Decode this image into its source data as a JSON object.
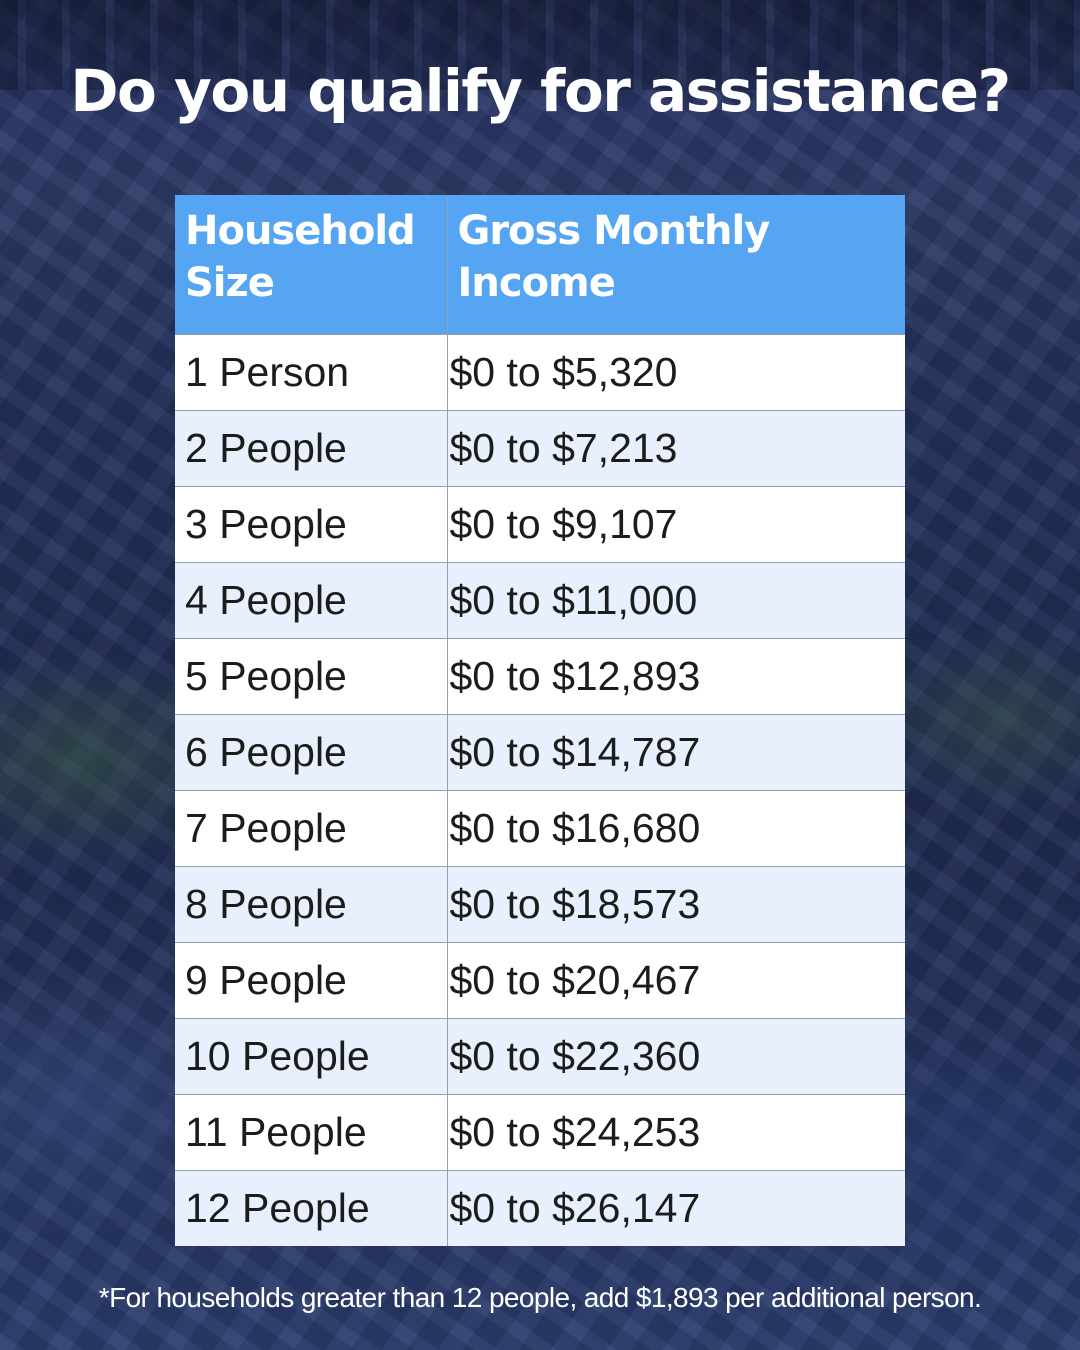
{
  "title": "Do you qualify for assistance?",
  "table": {
    "headers": [
      "Household Size",
      "Gross Monthly Income"
    ],
    "rows": [
      [
        "1 Person",
        "$0 to $5,320"
      ],
      [
        "2 People",
        "$0 to $7,213"
      ],
      [
        "3 People",
        "$0 to $9,107"
      ],
      [
        "4 People",
        "$0 to $11,000"
      ],
      [
        "5 People",
        "$0 to $12,893"
      ],
      [
        "6 People",
        "$0 to $14,787"
      ],
      [
        "7 People",
        "$0 to $16,680"
      ],
      [
        "8 People",
        "$0 to $18,573"
      ],
      [
        "9 People",
        "$0 to $20,467"
      ],
      [
        "10 People",
        "$0 to $22,360"
      ],
      [
        "11 People",
        "$0 to $24,253"
      ],
      [
        "12 People",
        "$0 to $26,147"
      ]
    ]
  },
  "footnote": "*For households greater than 12 people, add $1,893 per additional person.",
  "colors": {
    "header_bg": "#55a5f2",
    "row_alt_bg": "#e8f0fd",
    "background": "#23305a"
  }
}
